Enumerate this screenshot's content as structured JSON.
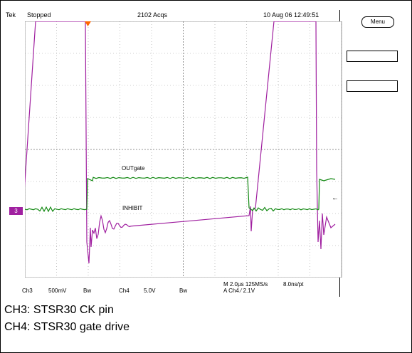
{
  "topbar": {
    "brand": "Tek",
    "status": "Stopped",
    "acqs": "2102 Acqs",
    "timestamp": "10 Aug 06 12:49:51"
  },
  "menu": {
    "label": "Menu"
  },
  "traces": {
    "outgate_label": "OUTgate",
    "inhibit_label": "INHIBIT",
    "ch3_marker": "3",
    "ch4_arrow": "←"
  },
  "footer": {
    "ch3": "Ch3",
    "ch3_scale": "500mV",
    "bw1": "Bw",
    "ch4": "Ch4",
    "ch4_scale": "5.0V",
    "bw2": "Bw",
    "timebase": "M 2.0µs 125MS/s",
    "trigger": "A  Ch4  ⁄  2.1V",
    "resolution": "8.0ns/pt"
  },
  "captions": [
    "CH3: STSR30 CK pin",
    "CH4: STSR30 gate drive"
  ],
  "colors": {
    "ch3": "#a020a0",
    "ch4": "#118811",
    "trigger_marker": "#ff6600"
  }
}
